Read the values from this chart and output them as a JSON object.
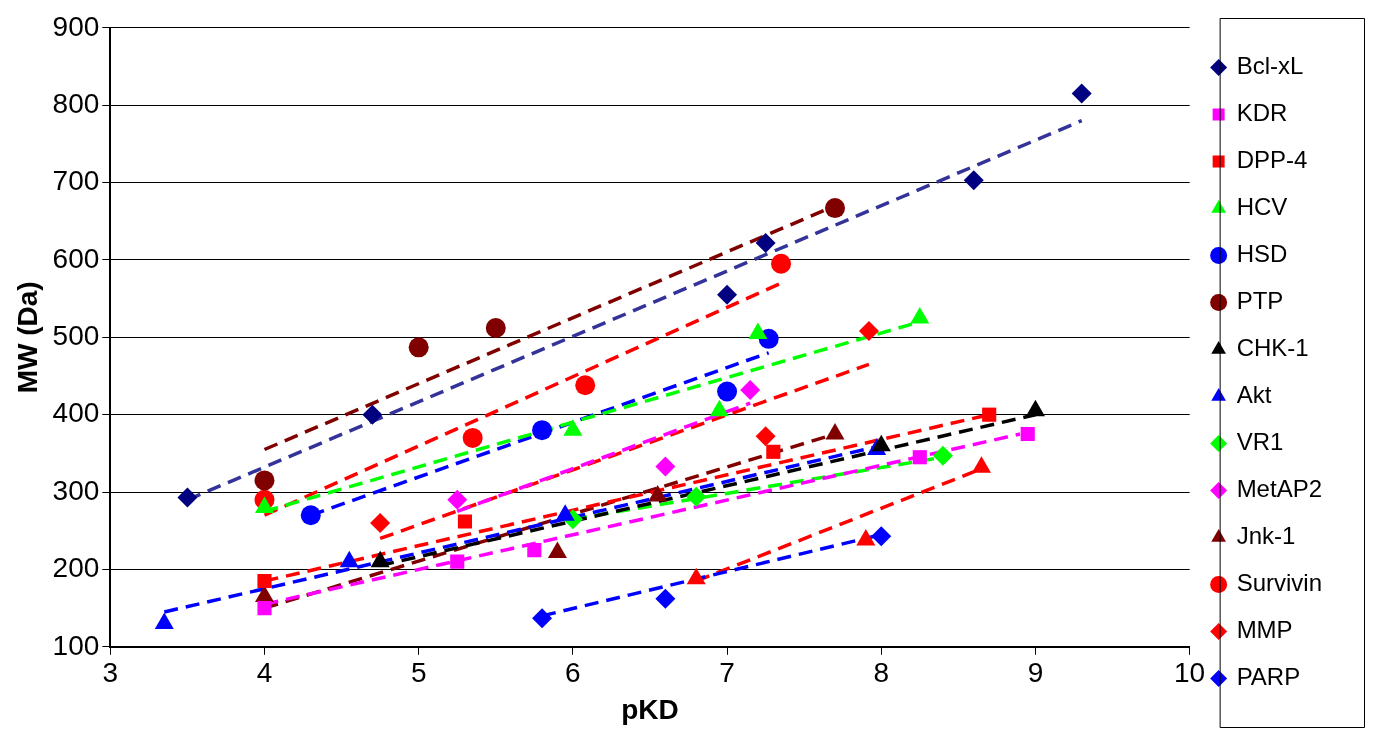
{
  "chart_data": {
    "type": "scatter",
    "xlabel": "pKD",
    "ylabel": "MW (Da)",
    "xlim": [
      3,
      10
    ],
    "xticks": [
      3,
      4,
      5,
      6,
      7,
      8,
      9,
      10
    ],
    "ylim": [
      100,
      900
    ],
    "yticks": [
      100,
      200,
      300,
      400,
      500,
      600,
      700,
      800,
      900
    ],
    "grid": "y",
    "legend": "right",
    "series": [
      {
        "name": "Bcl-xL",
        "color": "#000080",
        "marker": "diamond",
        "x": [
          3.5,
          4.7,
          7.0,
          7.25,
          8.6,
          9.3
        ],
        "values": [
          293,
          400,
          555,
          622,
          703,
          815
        ]
      },
      {
        "name": "KDR",
        "color": "#ff00ff",
        "marker": "square",
        "x": [
          4.0,
          5.25,
          5.75,
          8.25,
          8.95
        ],
        "values": [
          150,
          210,
          225,
          345,
          375
        ]
      },
      {
        "name": "DPP-4",
        "color": "#ff0000",
        "marker": "square",
        "x": [
          4.0,
          5.3,
          7.3,
          8.7
        ],
        "values": [
          185,
          262,
          352,
          400
        ]
      },
      {
        "name": "HCV",
        "color": "#00ff00",
        "marker": "triangle",
        "x": [
          4.0,
          6.0,
          6.95,
          7.2,
          8.25
        ],
        "values": [
          280,
          380,
          405,
          505,
          525
        ]
      },
      {
        "name": "HSD",
        "color": "#0000ff",
        "marker": "circle",
        "x": [
          4.3,
          5.8,
          7.0,
          7.27
        ],
        "values": [
          270,
          380,
          430,
          498
        ]
      },
      {
        "name": "PTP",
        "color": "#800000",
        "marker": "circle",
        "x": [
          4.0,
          5.0,
          5.5,
          7.7
        ],
        "values": [
          315,
          487,
          512,
          667
        ]
      },
      {
        "name": "CHK-1",
        "color": "#000000",
        "marker": "triangle",
        "x": [
          4.75,
          8.0,
          9.0
        ],
        "values": [
          210,
          360,
          405
        ]
      },
      {
        "name": "Akt",
        "color": "#0000ff",
        "marker": "triangle",
        "x": [
          3.35,
          4.55,
          5.95,
          7.97
        ],
        "values": [
          130,
          210,
          270,
          355
        ]
      },
      {
        "name": "VR1",
        "color": "#00ff00",
        "marker": "diamond",
        "x": [
          6.0,
          6.8,
          8.4
        ],
        "values": [
          265,
          294,
          347
        ]
      },
      {
        "name": "MetAP2",
        "color": "#ff00ff",
        "marker": "diamond",
        "x": [
          5.25,
          6.6,
          7.15
        ],
        "values": [
          290,
          333,
          432
        ]
      },
      {
        "name": "Jnk-1",
        "color": "#800000",
        "marker": "triangle",
        "x": [
          4.0,
          5.9,
          6.55,
          7.7
        ],
        "values": [
          165,
          222,
          295,
          375
        ]
      },
      {
        "name": "Survivin",
        "color": "#ff0000",
        "marker": "circle",
        "x": [
          4.0,
          5.35,
          6.08,
          7.35
        ],
        "values": [
          290,
          370,
          438,
          595
        ]
      },
      {
        "name": "MMP",
        "color": "#ff0000",
        "marker": "diamond",
        "x": [
          4.75,
          7.25,
          7.92
        ],
        "values": [
          260,
          372,
          508
        ]
      },
      {
        "name": "PARP",
        "color": "#0000ff",
        "marker": "diamond",
        "x": [
          5.8,
          6.6,
          8.0
        ],
        "values": [
          137,
          162,
          243
        ]
      },
      {
        "color": "#ff0000",
        "marker": "triangle",
        "x": [
          6.8,
          7.9,
          8.65
        ],
        "values": [
          188,
          238,
          332
        ]
      },
      {
        "type": "line",
        "line_style": "dashed",
        "marker": "none",
        "color": "#333399",
        "x": [
          3.5,
          9.3
        ],
        "values": [
          290,
          780
        ]
      },
      {
        "type": "line",
        "line_style": "dashed",
        "marker": "none",
        "color": "#ff00ff",
        "x": [
          4.0,
          8.9
        ],
        "values": [
          155,
          375
        ]
      },
      {
        "type": "line",
        "line_style": "dashed",
        "marker": "none",
        "color": "#ff0000",
        "x": [
          4.0,
          8.7
        ],
        "values": [
          185,
          400
        ]
      },
      {
        "type": "line",
        "line_style": "dashed",
        "marker": "none",
        "color": "#00ff00",
        "x": [
          4.0,
          8.25
        ],
        "values": [
          275,
          520
        ]
      },
      {
        "type": "line",
        "line_style": "dashed",
        "marker": "none",
        "color": "#0000ff",
        "x": [
          4.3,
          7.27
        ],
        "values": [
          270,
          480
        ]
      },
      {
        "type": "line",
        "line_style": "dashed",
        "marker": "none",
        "color": "#800000",
        "x": [
          4.0,
          7.7
        ],
        "values": [
          355,
          670
        ]
      },
      {
        "type": "line",
        "line_style": "dashed",
        "marker": "none",
        "color": "#000000",
        "x": [
          4.75,
          9.0
        ],
        "values": [
          205,
          400
        ]
      },
      {
        "type": "line",
        "line_style": "dashed",
        "marker": "none",
        "color": "#0000ff",
        "x": [
          3.35,
          8.0
        ],
        "values": [
          145,
          360
        ]
      },
      {
        "type": "line",
        "line_style": "dashed",
        "marker": "none",
        "color": "#00ff00",
        "x": [
          6.0,
          8.4
        ],
        "values": [
          265,
          345
        ]
      },
      {
        "type": "line",
        "line_style": "dashed",
        "marker": "none",
        "color": "#ff00ff",
        "x": [
          5.25,
          7.15
        ],
        "values": [
          275,
          415
        ]
      },
      {
        "type": "line",
        "line_style": "dashed",
        "marker": "none",
        "color": "#800000",
        "x": [
          4.0,
          7.7
        ],
        "values": [
          150,
          375
        ]
      },
      {
        "type": "line",
        "line_style": "dashed",
        "marker": "none",
        "color": "#ff0000",
        "x": [
          4.0,
          7.35
        ],
        "values": [
          270,
          570
        ]
      },
      {
        "type": "line",
        "line_style": "dashed",
        "marker": "none",
        "color": "#ff0000",
        "x": [
          4.75,
          7.92
        ],
        "values": [
          240,
          465
        ]
      },
      {
        "type": "line",
        "line_style": "dashed",
        "marker": "none",
        "color": "#0000ff",
        "x": [
          5.8,
          8.0
        ],
        "values": [
          140,
          245
        ]
      },
      {
        "type": "line",
        "line_style": "dashed",
        "marker": "none",
        "color": "#ff0000",
        "x": [
          6.8,
          8.65
        ],
        "values": [
          185,
          330
        ]
      }
    ]
  }
}
